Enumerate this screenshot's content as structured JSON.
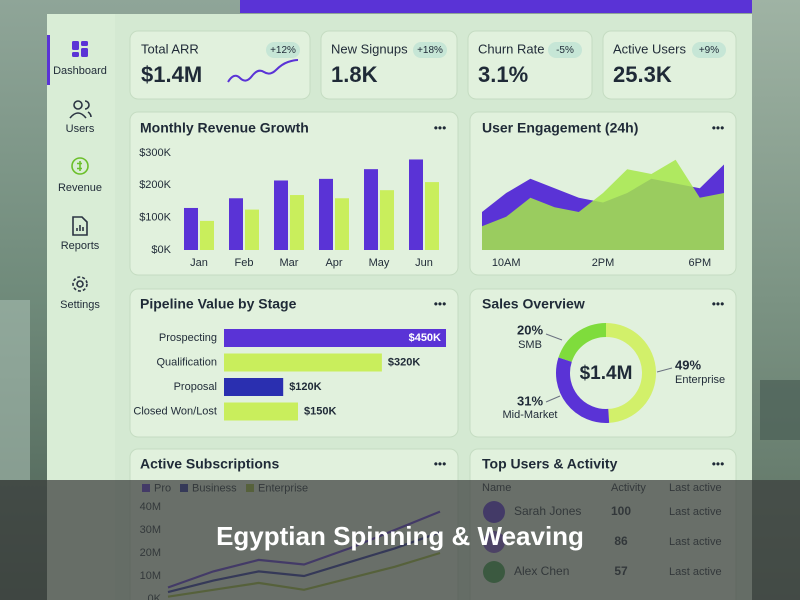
{
  "sidebar": {
    "items": [
      "Dashboard",
      "Users",
      "Revenue",
      "Reports",
      "Settings"
    ]
  },
  "kpis": [
    {
      "label": "Total ARR",
      "value": "$1.4M",
      "change": "+12%"
    },
    {
      "label": "New Signups",
      "value": "1.8K",
      "change": "+18%"
    },
    {
      "label": "Churn Rate",
      "value": "3.1%",
      "change": "-5%"
    },
    {
      "label": "Active Users",
      "value": "25.3K",
      "change": "+9%"
    }
  ],
  "revenue_chart": {
    "type": "bar",
    "title": "Monthly Revenue Growth",
    "categories": [
      "Jan",
      "Feb",
      "Mar",
      "Apr",
      "May",
      "Jun"
    ],
    "series": [
      {
        "color": "#5a33d6",
        "values": [
          130,
          160,
          215,
          220,
          250,
          280
        ]
      },
      {
        "color": "#c9ee5c",
        "values": [
          90,
          125,
          170,
          160,
          185,
          210
        ]
      }
    ],
    "ylim": [
      0,
      300
    ],
    "yticks": [
      {
        "value": 0,
        "label": "$0K"
      },
      {
        "value": 100,
        "label": "$100K"
      },
      {
        "value": 200,
        "label": "$200K"
      },
      {
        "value": 300,
        "label": "$300K"
      }
    ]
  },
  "engagement_chart": {
    "type": "area",
    "title": "User Engagement (24h)",
    "x": [
      null,
      "10AM",
      null,
      null,
      null,
      "2PM",
      null,
      null,
      null,
      "6PM",
      null
    ],
    "series": [
      {
        "color": "#5a33d6",
        "values": [
          40,
          60,
          75,
          65,
          55,
          50,
          60,
          75,
          70,
          65,
          90
        ]
      },
      {
        "color": "#a6e84a",
        "values": [
          25,
          35,
          55,
          45,
          40,
          60,
          85,
          80,
          95,
          55,
          60
        ]
      }
    ],
    "ylim": [
      0,
      100
    ]
  },
  "pipeline_chart": {
    "type": "hbar",
    "title": "Pipeline Value by Stage",
    "categories": [
      "Prospecting",
      "Qualification",
      "Proposal",
      "Closed Won/Lost"
    ],
    "values": [
      450,
      320,
      120,
      150
    ],
    "value_labels": [
      "$450K",
      "$320K",
      "$120K",
      "$150K"
    ],
    "colors": [
      "#5a33d6",
      "#c9ee5c",
      "#2a2fb0",
      "#c9ee5c"
    ],
    "xlim": [
      0,
      450
    ]
  },
  "sales_chart": {
    "type": "donut",
    "title": "Sales Overview",
    "center_label": "$1.4M",
    "categories": [
      "SMB",
      "Enterprise",
      "Mid-Market"
    ],
    "values": [
      20,
      49,
      31
    ],
    "value_labels": [
      "20%",
      "49%",
      "31%"
    ],
    "colors": [
      "#7fdc3c",
      "#d2f06a",
      "#5a33d6"
    ]
  },
  "subscriptions_chart": {
    "type": "line",
    "title": "Active Subscriptions",
    "series": [
      {
        "name": "Pro",
        "color": "#5a33d6",
        "values": [
          5,
          12,
          17,
          15,
          22,
          30,
          38
        ]
      },
      {
        "name": "Business",
        "color": "#2a2fa0",
        "values": [
          3,
          8,
          12,
          10,
          16,
          22,
          29
        ]
      },
      {
        "name": "Enterprise",
        "color": "#9fbd3a",
        "values": [
          1,
          4,
          7,
          4,
          9,
          14,
          20
        ]
      }
    ],
    "ylim": [
      0,
      40
    ],
    "yticks": [
      {
        "value": 0,
        "label": "0K"
      },
      {
        "value": 10,
        "label": "10M"
      },
      {
        "value": 20,
        "label": "20M"
      },
      {
        "value": 30,
        "label": "30M"
      },
      {
        "value": 40,
        "label": "40M"
      }
    ]
  },
  "top_users": {
    "title": "Top Users & Activity",
    "columns": [
      "Name",
      "Activity",
      "Last active"
    ],
    "rows": [
      {
        "name": "Sarah Jones",
        "activity": 100,
        "last_active": "Last active"
      },
      {
        "activity": 86,
        "last_active": "Last active"
      },
      {
        "name": "Alex Chen",
        "activity": 57,
        "last_active": "Last active"
      }
    ]
  },
  "banner": {
    "caption": "Egyptian Spinning & Weaving"
  }
}
